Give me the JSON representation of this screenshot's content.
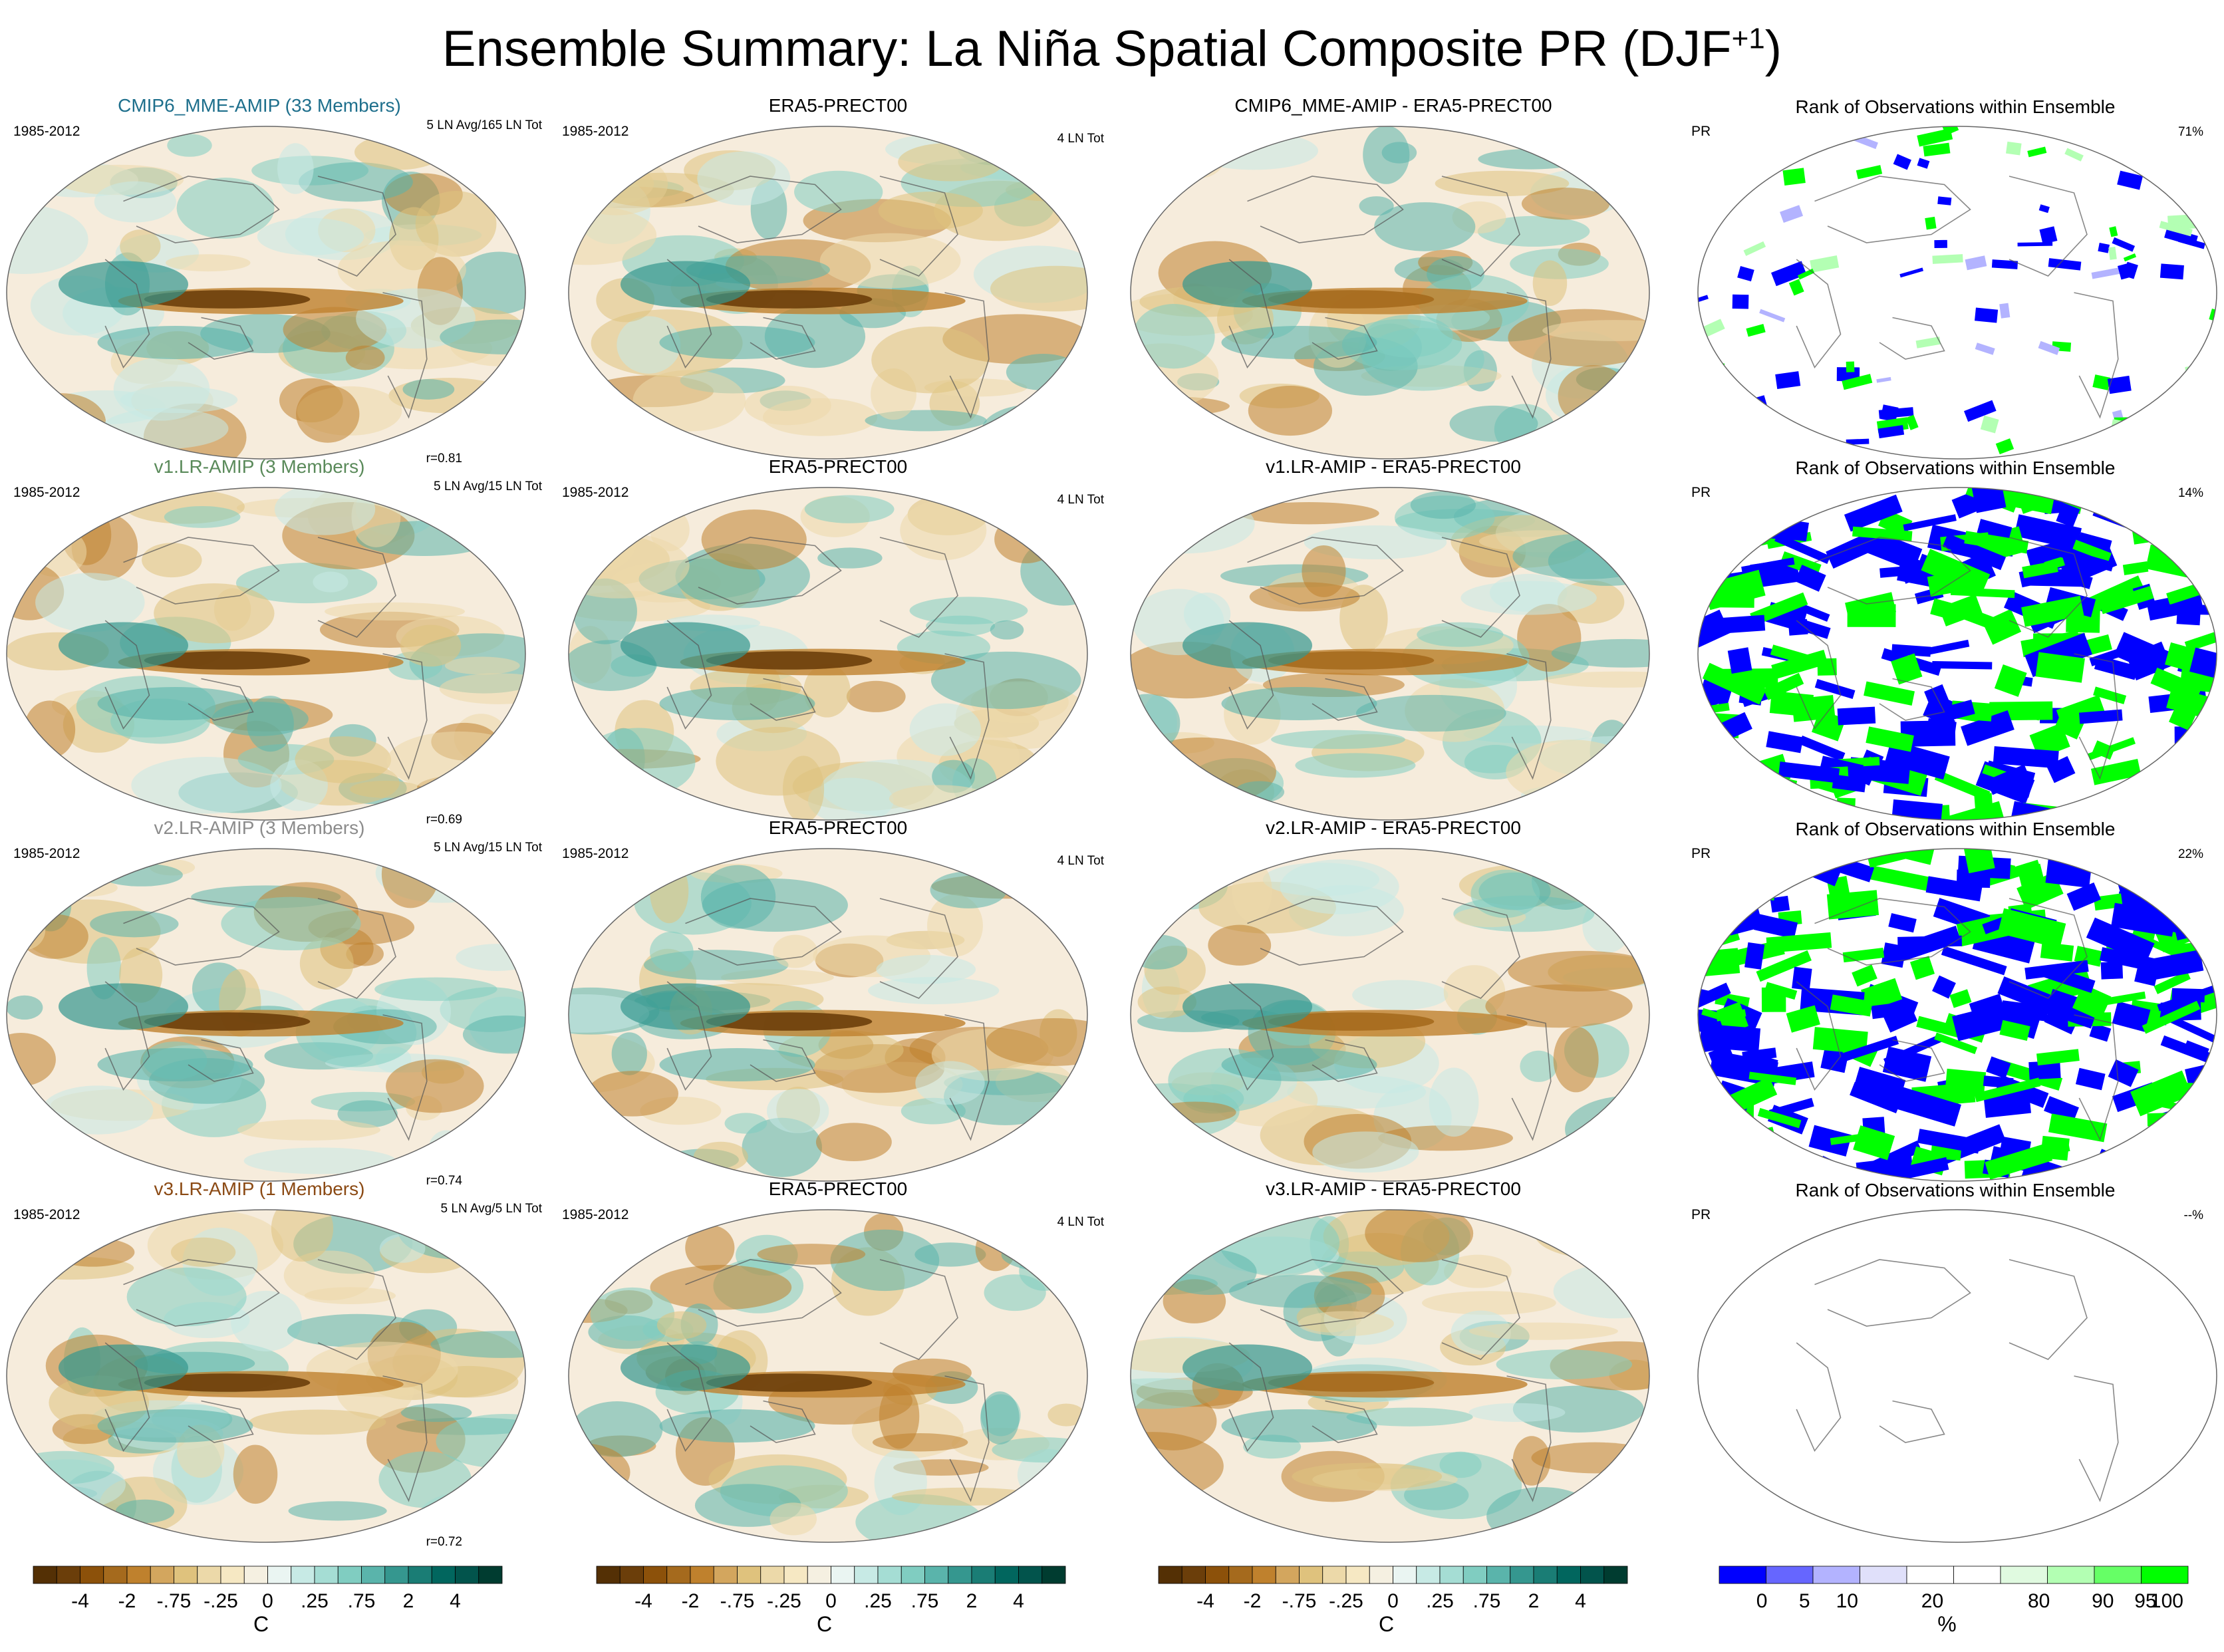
{
  "title": "Ensemble Summary: La Niña Spatial Composite PR (DJF",
  "title_sup": "+1",
  "title_close": ")",
  "chart_data": {
    "type": "map-panels",
    "rows": [
      {
        "model_title": "CMIP6_MME-AMIP (33 Members)",
        "model_color": "#1e6f8c",
        "period": "1985-2012",
        "model_info": "5 LN Avg/165 LN Tot",
        "corr": "r=0.81",
        "obs_title": "ERA5-PRECT00",
        "obs_period": "1985-2012",
        "obs_info": "4 LN Tot",
        "diff_title": "CMIP6_MME-AMIP - ERA5-PRECT00",
        "rank_title": "Rank of Observations within Ensemble",
        "rank_label": "PR",
        "rank_pct": "71%",
        "rank_mode": "sparse"
      },
      {
        "model_title": "v1.LR-AMIP (3 Members)",
        "model_color": "#5a8a5a",
        "period": "1985-2012",
        "model_info": "5 LN Avg/15 LN Tot",
        "corr": "r=0.69",
        "obs_title": "ERA5-PRECT00",
        "obs_period": "1985-2012",
        "obs_info": "4 LN Tot",
        "diff_title": "v1.LR-AMIP - ERA5-PRECT00",
        "rank_title": "Rank of Observations within Ensemble",
        "rank_label": "PR",
        "rank_pct": "14%",
        "rank_mode": "dense"
      },
      {
        "model_title": "v2.LR-AMIP (3 Members)",
        "model_color": "#8c8c8c",
        "period": "1985-2012",
        "model_info": "5 LN Avg/15 LN Tot",
        "corr": "r=0.74",
        "obs_title": "ERA5-PRECT00",
        "obs_period": "1985-2012",
        "obs_info": "4 LN Tot",
        "diff_title": "v2.LR-AMIP - ERA5-PRECT00",
        "rank_title": "Rank of Observations within Ensemble",
        "rank_label": "PR",
        "rank_pct": "22%",
        "rank_mode": "dense2"
      },
      {
        "model_title": "v3.LR-AMIP (1 Members)",
        "model_color": "#8b4a14",
        "period": "1985-2012",
        "model_info": "5 LN Avg/5 LN Tot",
        "corr": "r=0.72",
        "obs_title": "ERA5-PRECT00",
        "obs_period": "1985-2012",
        "obs_info": "4 LN Tot",
        "diff_title": "v3.LR-AMIP - ERA5-PRECT00",
        "rank_title": "Rank of Observations within Ensemble",
        "rank_label": "PR",
        "rank_pct": "--%",
        "rank_mode": "empty"
      }
    ],
    "colorbars": [
      {
        "colors": [
          "#543005",
          "#6b3e0a",
          "#8c510a",
          "#a56a1d",
          "#bf812d",
          "#d3a65e",
          "#dfc27d",
          "#ecd9a9",
          "#f6e8c3",
          "#f5f0e1",
          "#eaf5f2",
          "#c7eae5",
          "#a5ddd4",
          "#80cdc1",
          "#5ab4ab",
          "#35978f",
          "#1a7d75",
          "#01665e",
          "#02544c",
          "#003c30"
        ],
        "labels": [
          "-4",
          "-2",
          "-.75",
          "-.25",
          "0",
          ".25",
          ".75",
          "2",
          "4"
        ],
        "units": "C"
      },
      {
        "colors": [
          "#543005",
          "#6b3e0a",
          "#8c510a",
          "#a56a1d",
          "#bf812d",
          "#d3a65e",
          "#dfc27d",
          "#ecd9a9",
          "#f6e8c3",
          "#f5f0e1",
          "#eaf5f2",
          "#c7eae5",
          "#a5ddd4",
          "#80cdc1",
          "#5ab4ab",
          "#35978f",
          "#1a7d75",
          "#01665e",
          "#02544c",
          "#003c30"
        ],
        "labels": [
          "-4",
          "-2",
          "-.75",
          "-.25",
          "0",
          ".25",
          ".75",
          "2",
          "4"
        ],
        "units": "C"
      },
      {
        "colors": [
          "#543005",
          "#6b3e0a",
          "#8c510a",
          "#a56a1d",
          "#bf812d",
          "#d3a65e",
          "#dfc27d",
          "#ecd9a9",
          "#f6e8c3",
          "#f5f0e1",
          "#eaf5f2",
          "#c7eae5",
          "#a5ddd4",
          "#80cdc1",
          "#5ab4ab",
          "#35978f",
          "#1a7d75",
          "#01665e",
          "#02544c",
          "#003c30"
        ],
        "labels": [
          "-4",
          "-2",
          "-.75",
          "-.25",
          "0",
          ".25",
          ".75",
          "2",
          "4"
        ],
        "units": "C"
      },
      {
        "colors": [
          "#0000ff",
          "#6666ff",
          "#b3b3ff",
          "#e0e0fa",
          "#ffffff",
          "#ffffff",
          "#e0fae0",
          "#b3ffb3",
          "#66ff66",
          "#00ff00"
        ],
        "labels": [
          "0",
          "5",
          "10",
          "20",
          "80",
          "90",
          "95",
          "100"
        ],
        "units": "%"
      }
    ]
  }
}
